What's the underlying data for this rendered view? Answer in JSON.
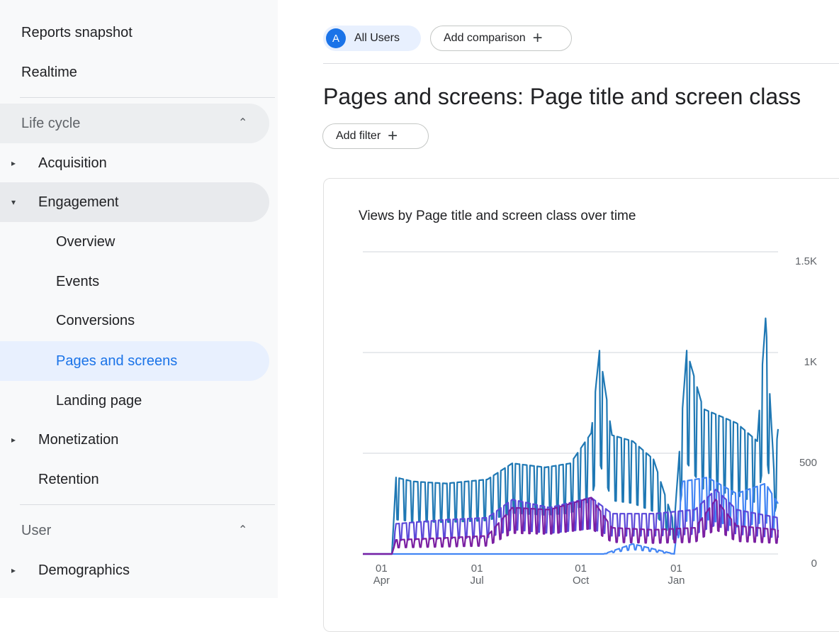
{
  "sidebar": {
    "top_items": [
      "Reports snapshot",
      "Realtime"
    ],
    "life_cycle": {
      "label": "Life cycle",
      "acquisition": "Acquisition",
      "engagement": "Engagement",
      "engagement_items": [
        "Overview",
        "Events",
        "Conversions",
        "Pages and screens",
        "Landing page"
      ],
      "monetization": "Monetization",
      "retention": "Retention"
    },
    "user": {
      "label": "User",
      "demographics": "Demographics"
    }
  },
  "toolbar": {
    "avatar_letter": "A",
    "all_users": "All Users",
    "add_comparison": "Add comparison",
    "add_filter": "Add filter"
  },
  "page": {
    "title": "Pages and screens: Page title and screen class"
  },
  "card": {
    "title": "Views by Page title and screen class over time"
  },
  "icons": {
    "expand": "chevron-up-icon",
    "caret_right": "caret-right-icon",
    "caret_down": "caret-down-icon",
    "plus": "plus-icon"
  },
  "chart_data": {
    "type": "line",
    "title": "Views by Page title and screen class over time",
    "x_ticks": [
      [
        "01",
        "Apr"
      ],
      [
        "01",
        "Jul"
      ],
      [
        "01",
        "Oct"
      ],
      [
        "01",
        "Jan"
      ]
    ],
    "y_ticks": [
      "0",
      "500",
      "1K",
      "1.5K"
    ],
    "ylim": [
      0,
      1500
    ],
    "series": [
      {
        "color": "#1f78b4",
        "points": [
          [
            0,
            0
          ],
          [
            0.07,
            0
          ],
          [
            0.08,
            380
          ],
          [
            0.12,
            360
          ],
          [
            0.2,
            350
          ],
          [
            0.3,
            370
          ],
          [
            0.36,
            450
          ],
          [
            0.44,
            430
          ],
          [
            0.5,
            450
          ],
          [
            0.55,
            600
          ],
          [
            0.57,
            1010
          ],
          [
            0.6,
            590
          ],
          [
            0.65,
            560
          ],
          [
            0.7,
            470
          ],
          [
            0.75,
            150
          ],
          [
            0.78,
            1010
          ],
          [
            0.82,
            720
          ],
          [
            0.9,
            650
          ],
          [
            0.95,
            560
          ],
          [
            0.97,
            1170
          ],
          [
            0.99,
            420
          ],
          [
            1,
            620
          ]
        ]
      },
      {
        "color": "#4285f4",
        "points": [
          [
            0,
            0
          ],
          [
            0.07,
            0
          ],
          [
            0.25,
            0
          ],
          [
            0.55,
            0
          ],
          [
            0.58,
            0
          ],
          [
            0.65,
            50
          ],
          [
            0.75,
            0
          ],
          [
            0.77,
            360
          ],
          [
            0.83,
            380
          ],
          [
            0.9,
            300
          ],
          [
            0.97,
            350
          ],
          [
            1,
            250
          ]
        ]
      },
      {
        "color": "#5b48d9",
        "points": [
          [
            0,
            0
          ],
          [
            0.07,
            0
          ],
          [
            0.08,
            150
          ],
          [
            0.2,
            170
          ],
          [
            0.3,
            180
          ],
          [
            0.36,
            270
          ],
          [
            0.45,
            230
          ],
          [
            0.55,
            280
          ],
          [
            0.6,
            200
          ],
          [
            0.7,
            200
          ],
          [
            0.8,
            220
          ],
          [
            0.85,
            320
          ],
          [
            0.9,
            220
          ],
          [
            1,
            180
          ]
        ]
      },
      {
        "color": "#7b1fa2",
        "points": [
          [
            0,
            0
          ],
          [
            0.07,
            0
          ],
          [
            0.08,
            70
          ],
          [
            0.2,
            80
          ],
          [
            0.3,
            90
          ],
          [
            0.36,
            230
          ],
          [
            0.45,
            220
          ],
          [
            0.55,
            280
          ],
          [
            0.6,
            130
          ],
          [
            0.7,
            120
          ],
          [
            0.8,
            130
          ],
          [
            0.85,
            270
          ],
          [
            0.9,
            140
          ],
          [
            1,
            120
          ]
        ]
      }
    ]
  }
}
